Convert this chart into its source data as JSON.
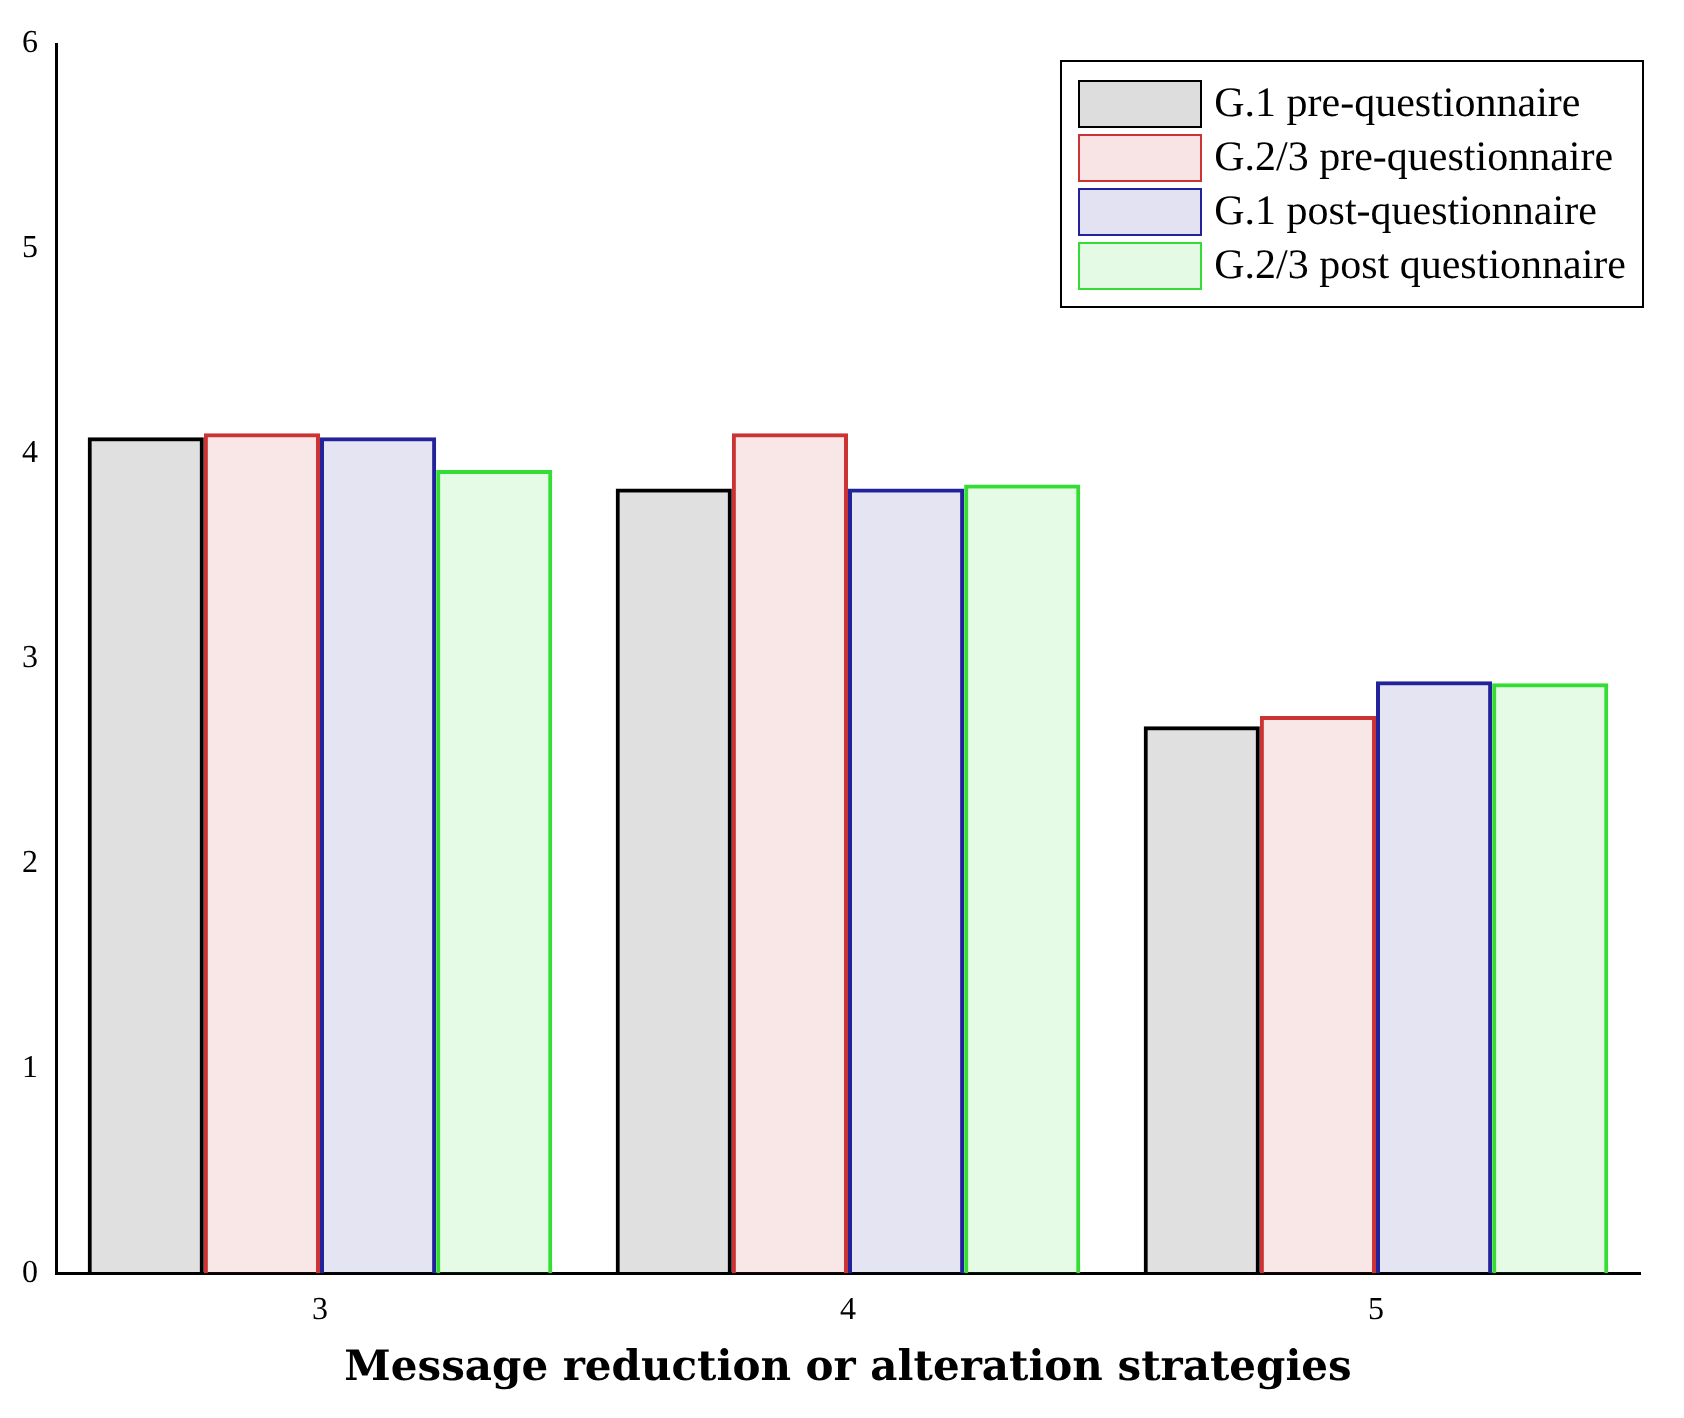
{
  "chart_data": {
    "type": "bar",
    "xlabel": "Message reduction or alteration strategies",
    "categories": [
      "3",
      "4",
      "5"
    ],
    "series": [
      {
        "name": "G.1 pre-questionnaire",
        "color": "#000000",
        "values": [
          4.08,
          3.83,
          2.67
        ]
      },
      {
        "name": "G.2/3 pre-questionnaire",
        "color": "#cc3333",
        "values": [
          4.1,
          4.1,
          2.72
        ]
      },
      {
        "name": "G.1 post-questionnaire",
        "color": "#22229a",
        "values": [
          4.08,
          3.83,
          2.89
        ]
      },
      {
        "name": "G.2/3 post questionnaire",
        "color": "#33dd33",
        "values": [
          3.92,
          3.85,
          2.88
        ]
      }
    ],
    "ylim": [
      0,
      6
    ],
    "yticks": [
      0,
      1,
      2,
      3,
      4,
      5,
      6
    ],
    "grid": false,
    "legend": "top right"
  }
}
